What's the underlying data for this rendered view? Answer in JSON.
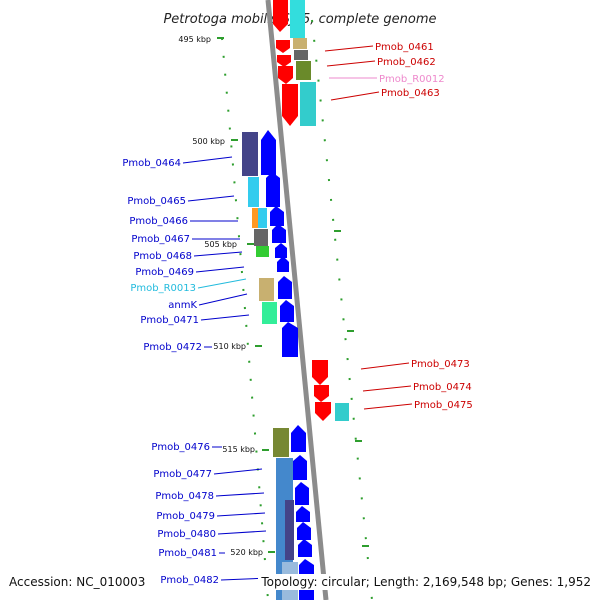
{
  "title": "Petrotoga mobilis SJ95, complete genome",
  "footer": {
    "accession": "Accession: NC_010003",
    "topology": "Topology: circular; Length: 2,169,548 bp; Genes: 1,952"
  },
  "colors": {
    "backbone": "#8c8c8c",
    "tick": "#2e9e2e",
    "forward_label": "#0000cc",
    "reverse_label": "#cc0000",
    "rna_label_forward": "#22bbdd",
    "rna_label_reverse": "#ee88cc",
    "forward_arrow": "#0000ff",
    "reverse_arrow": "#ff0000"
  },
  "scale_labels": [
    "495 kbp",
    "500 kbp",
    "505 kbp",
    "510 kbp",
    "515 kbp",
    "520 kbp"
  ],
  "genes_left": [
    "Pmob_0464",
    "Pmob_0465",
    "Pmob_0466",
    "Pmob_0467",
    "Pmob_0468",
    "Pmob_0469",
    "Pmob_R0013",
    "anmK",
    "Pmob_0471",
    "Pmob_0472",
    "Pmob_0476",
    "Pmob_0477",
    "Pmob_0478",
    "Pmob_0479",
    "Pmob_0480",
    "Pmob_0481",
    "Pmob_0482"
  ],
  "genes_right": [
    "Pmob_0461",
    "Pmob_0462",
    "Pmob_R0012",
    "Pmob_0463",
    "Pmob_0473",
    "Pmob_0474",
    "Pmob_0475"
  ]
}
